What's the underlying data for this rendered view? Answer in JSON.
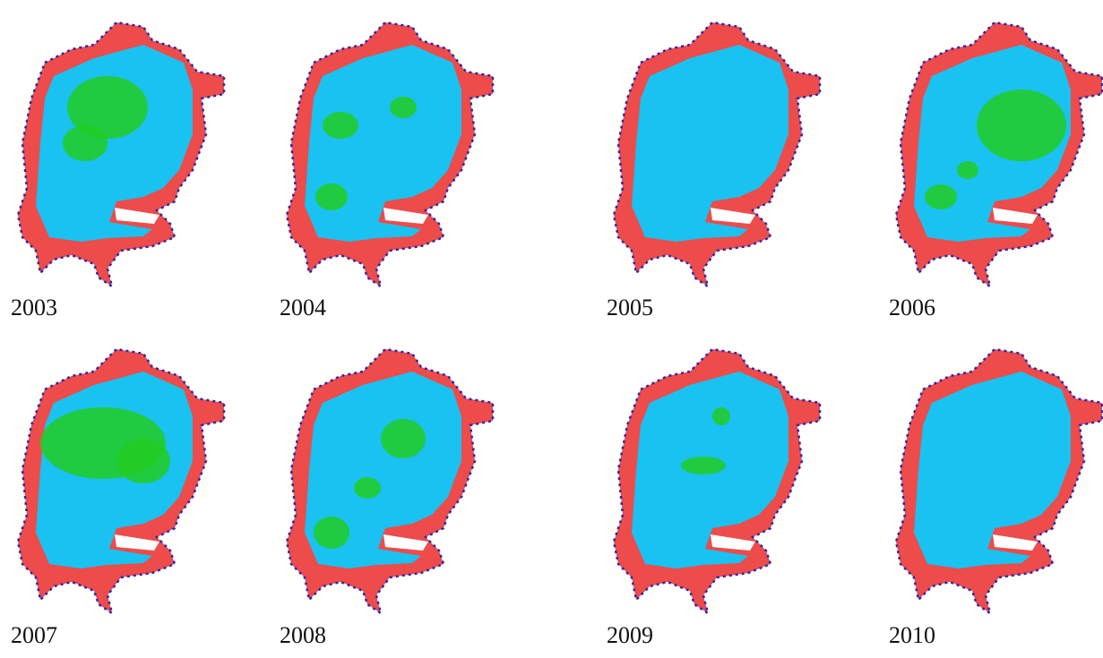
{
  "panels": [
    {
      "label": "2003"
    },
    {
      "label": "2004"
    },
    {
      "label": "2005"
    },
    {
      "label": "2006"
    },
    {
      "label": "2007"
    },
    {
      "label": "2008"
    },
    {
      "label": "2009"
    },
    {
      "label": "2010"
    }
  ]
}
